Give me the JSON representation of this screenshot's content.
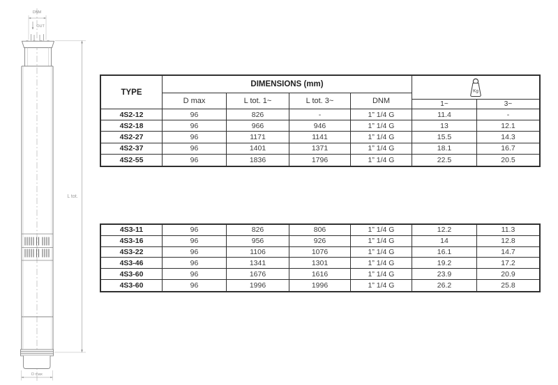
{
  "drawing": {
    "labels": {
      "dnm": "DNM",
      "out": "OUT",
      "l_tot": "L tot.",
      "d_max": "D max"
    }
  },
  "table": {
    "header": {
      "type": "TYPE",
      "dimensions": "DIMENSIONS (mm)",
      "d_max": "D max",
      "l_tot_1": "L tot. 1~",
      "l_tot_3": "L tot. 3~",
      "dnm": "DNM",
      "kg_label": "Kg",
      "w1": "1~",
      "w3": "3~"
    },
    "groups": [
      {
        "rows": [
          [
            "4S2-12",
            "96",
            "826",
            "-",
            "1” 1/4 G",
            "11.4",
            "-"
          ],
          [
            "4S2-18",
            "96",
            "966",
            "946",
            "1” 1/4 G",
            "13",
            "12.1"
          ],
          [
            "4S2-27",
            "96",
            "1171",
            "1141",
            "1” 1/4 G",
            "15.5",
            "14.3"
          ],
          [
            "4S2-37",
            "96",
            "1401",
            "1371",
            "1” 1/4 G",
            "18.1",
            "16.7"
          ],
          [
            "4S2-55",
            "96",
            "1836",
            "1796",
            "1” 1/4 G",
            "22.5",
            "20.5"
          ]
        ]
      },
      {
        "rows": [
          [
            "4S3-11",
            "96",
            "826",
            "806",
            "1” 1/4 G",
            "12.2",
            "11.3"
          ],
          [
            "4S3-16",
            "96",
            "956",
            "926",
            "1” 1/4 G",
            "14",
            "12.8"
          ],
          [
            "4S3-22",
            "96",
            "1106",
            "1076",
            "1” 1/4 G",
            "16.1",
            "14.7"
          ],
          [
            "4S3-46",
            "96",
            "1341",
            "1301",
            "1” 1/4 G",
            "19.2",
            "17.2"
          ],
          [
            "4S3-60",
            "96",
            "1676",
            "1616",
            "1” 1/4 G",
            "23.9",
            "20.9"
          ],
          [
            "4S3-60",
            "96",
            "1996",
            "1996",
            "1” 1/4 G",
            "26.2",
            "25.8"
          ]
        ]
      }
    ]
  },
  "colors": {
    "table_border": "#2f2f2f",
    "table_text": "#3c3c3c",
    "drawing_line": "#848484",
    "drawing_label": "#8f8f8f",
    "background": "#ffffff"
  }
}
